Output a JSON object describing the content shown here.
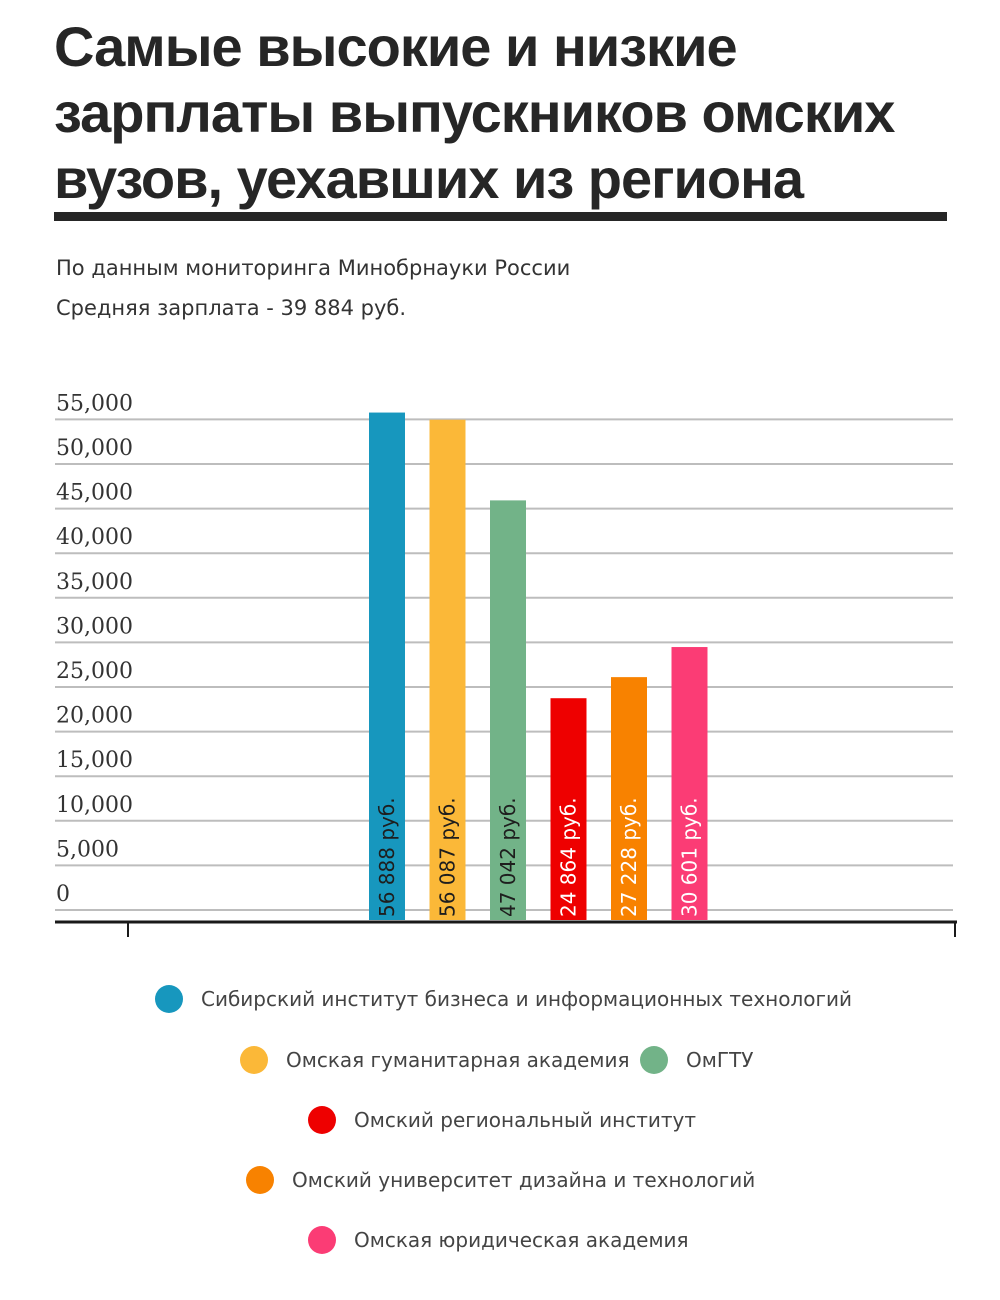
{
  "title": "Самые высокие и низкие зарплаты выпускников омских вузов, уехавших из региона",
  "subtitle_source": "По данным мониторинга Минобрнауки России",
  "subtitle_average": "Средняя зарплата - 39 884 руб.",
  "chart_data": {
    "type": "bar",
    "ylim": [
      0,
      57000
    ],
    "yticks": [
      {
        "value": 0,
        "label": "0"
      },
      {
        "value": 5000,
        "label": "5,000"
      },
      {
        "value": 10000,
        "label": "10,000"
      },
      {
        "value": 15000,
        "label": "15,000"
      },
      {
        "value": 20000,
        "label": "20,000"
      },
      {
        "value": 25000,
        "label": "25,000"
      },
      {
        "value": 30000,
        "label": "30,000"
      },
      {
        "value": 35000,
        "label": "35,000"
      },
      {
        "value": 40000,
        "label": "40,000"
      },
      {
        "value": 45000,
        "label": "45,000"
      },
      {
        "value": 50000,
        "label": "50,000"
      },
      {
        "value": 55000,
        "label": "55,000"
      }
    ],
    "grid": true,
    "categories": [
      "Сибирский институт бизнеса и информационных технологий",
      "Омская гуманитарная академия",
      "ОмГТУ",
      "Омский региональный институт",
      "Омский университет дизайна и технологий",
      "Омская юридическая академия"
    ],
    "values": [
      56888,
      56087,
      47042,
      24864,
      27228,
      30601
    ],
    "value_labels": [
      "56 888 руб.",
      "56 087 руб.",
      "47 042 руб.",
      "24 864 руб.",
      "27 228 руб.",
      "30 601 руб."
    ],
    "colors": [
      "#1797be",
      "#fbb838",
      "#72b388",
      "#ee0000",
      "#f88200",
      "#fb3c75"
    ]
  },
  "legend": [
    {
      "label": "Сибирский институт бизнеса и информационных технологий",
      "color": "#1797be"
    },
    {
      "label": "Омская гуманитарная академия",
      "color": "#fbb838"
    },
    {
      "label": "ОмГТУ",
      "color": "#72b388"
    },
    {
      "label": "Омский региональный институт",
      "color": "#ee0000"
    },
    {
      "label": "Омский университет дизайна и технологий",
      "color": "#f88200"
    },
    {
      "label": "Омская юридическая академия",
      "color": "#fb3c75"
    }
  ]
}
